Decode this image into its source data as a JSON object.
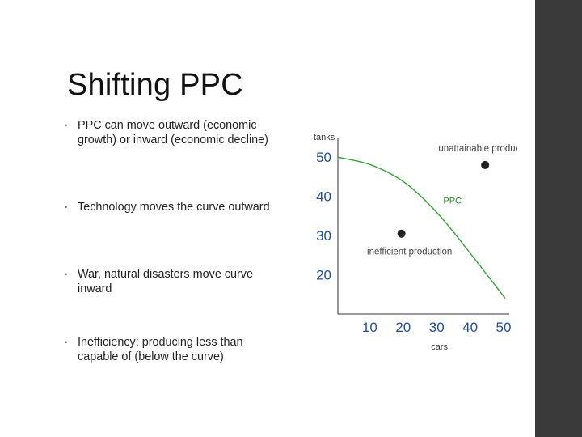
{
  "slide": {
    "title": "Shifting PPC",
    "bullets": [
      {
        "marker": "•",
        "text": "PPC can move outward (economic growth) or inward (economic decline)"
      },
      {
        "marker": "•",
        "text": "Technology moves the curve outward"
      },
      {
        "marker": "•",
        "text": "War, natural disasters move curve inward"
      },
      {
        "marker": "•",
        "text": "Inefficiency: producing less than capable of (below the curve)"
      }
    ]
  },
  "colors": {
    "sidebar": "#3a3a3a",
    "curve": "#3aa03a",
    "tick_labels": "#1f4e9c",
    "points": "#222222"
  },
  "chart_data": {
    "type": "line",
    "xlabel": "cars",
    "ylabel": "tanks",
    "x_ticks": [
      10,
      20,
      30,
      40,
      50
    ],
    "y_ticks": [
      20,
      30,
      40,
      50
    ],
    "xlim": [
      0,
      50
    ],
    "ylim": [
      10,
      55
    ],
    "grid": false,
    "series": [
      {
        "name": "PPC",
        "x": [
          0,
          10,
          20,
          30,
          40,
          50
        ],
        "y": [
          50,
          48,
          43.5,
          35.5,
          25,
          14
        ]
      }
    ],
    "points": [
      {
        "label": "unattainable production",
        "x": 44,
        "y": 48
      },
      {
        "label": "inefficient production",
        "x": 19,
        "y": 30.5
      }
    ]
  }
}
